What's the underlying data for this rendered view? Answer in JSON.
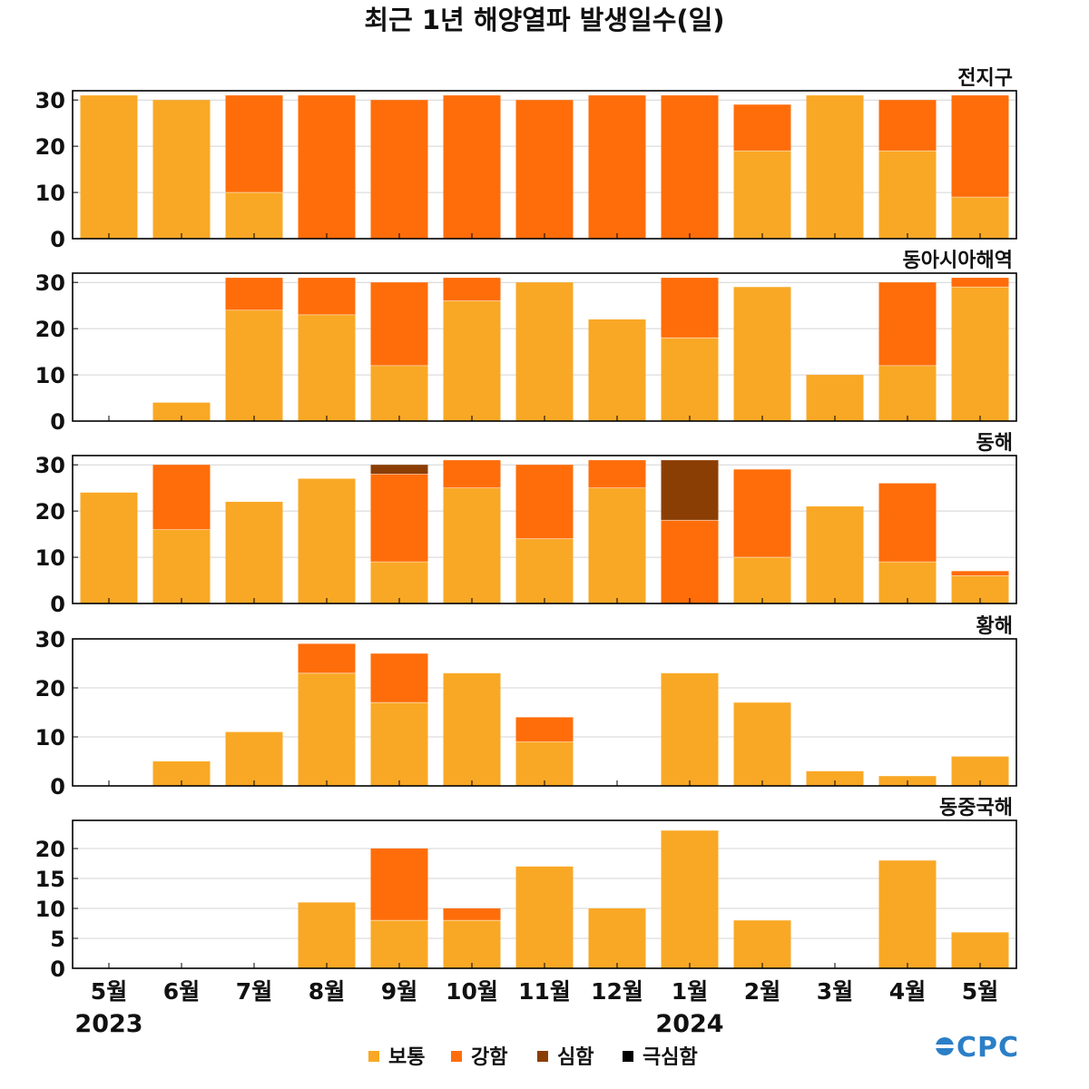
{
  "title": "최근 1년 해양열파 발생일수(일)",
  "colors": {
    "보통": "#f9a825",
    "강함": "#ff6d0a",
    "심함": "#8b3e04",
    "극심함": "#000000",
    "grid": "#d4d4d4",
    "frame": "#000000"
  },
  "logo_text": "CPC",
  "chart_data": {
    "type": "bar",
    "stacked": true,
    "categories": [
      "5월",
      "6월",
      "7월",
      "8월",
      "9월",
      "10월",
      "11월",
      "12월",
      "1월",
      "2월",
      "3월",
      "4월",
      "5월"
    ],
    "year_labels": [
      {
        "index": 0,
        "label": "2023"
      },
      {
        "index": 8,
        "label": "2024"
      }
    ],
    "legend": [
      "보통",
      "강함",
      "심함",
      "극심함"
    ],
    "legend_position": "bottom-center",
    "panels": [
      {
        "title": "전지구",
        "ylim": [
          0,
          32
        ],
        "yticks": [
          0,
          10,
          20,
          30
        ],
        "series": [
          {
            "name": "보통",
            "values": [
              31,
              30,
              10,
              0,
              0,
              0,
              0,
              0,
              0,
              19,
              31,
              19,
              9
            ]
          },
          {
            "name": "강함",
            "values": [
              0,
              0,
              21,
              31,
              30,
              31,
              30,
              31,
              31,
              10,
              0,
              11,
              22
            ]
          },
          {
            "name": "심함",
            "values": [
              0,
              0,
              0,
              0,
              0,
              0,
              0,
              0,
              0,
              0,
              0,
              0,
              0
            ]
          },
          {
            "name": "극심함",
            "values": [
              0,
              0,
              0,
              0,
              0,
              0,
              0,
              0,
              0,
              0,
              0,
              0,
              0
            ]
          }
        ]
      },
      {
        "title": "동아시아해역",
        "ylim": [
          0,
          32
        ],
        "yticks": [
          0,
          10,
          20,
          30
        ],
        "series": [
          {
            "name": "보통",
            "values": [
              0,
              4,
              24,
              23,
              12,
              26,
              30,
              22,
              18,
              29,
              10,
              12,
              29
            ]
          },
          {
            "name": "강함",
            "values": [
              0,
              0,
              7,
              8,
              18,
              5,
              0,
              0,
              13,
              0,
              0,
              18,
              2
            ]
          },
          {
            "name": "심함",
            "values": [
              0,
              0,
              0,
              0,
              0,
              0,
              0,
              0,
              0,
              0,
              0,
              0,
              0
            ]
          },
          {
            "name": "극심함",
            "values": [
              0,
              0,
              0,
              0,
              0,
              0,
              0,
              0,
              0,
              0,
              0,
              0,
              0
            ]
          }
        ]
      },
      {
        "title": "동해",
        "ylim": [
          0,
          32
        ],
        "yticks": [
          0,
          10,
          20,
          30
        ],
        "series": [
          {
            "name": "보통",
            "values": [
              24,
              16,
              22,
              27,
              9,
              25,
              14,
              25,
              0,
              10,
              21,
              9,
              6
            ]
          },
          {
            "name": "강함",
            "values": [
              0,
              14,
              0,
              0,
              19,
              6,
              16,
              6,
              18,
              19,
              0,
              17,
              1
            ]
          },
          {
            "name": "심함",
            "values": [
              0,
              0,
              0,
              0,
              2,
              0,
              0,
              0,
              13,
              0,
              0,
              0,
              0
            ]
          },
          {
            "name": "극심함",
            "values": [
              0,
              0,
              0,
              0,
              0,
              0,
              0,
              0,
              0,
              0,
              0,
              0,
              0
            ]
          }
        ]
      },
      {
        "title": "황해",
        "ylim": [
          0,
          30
        ],
        "yticks": [
          0,
          10,
          20,
          30
        ],
        "series": [
          {
            "name": "보통",
            "values": [
              0,
              5,
              11,
              23,
              17,
              23,
              9,
              0,
              23,
              17,
              3,
              2,
              6
            ]
          },
          {
            "name": "강함",
            "values": [
              0,
              0,
              0,
              6,
              10,
              0,
              5,
              0,
              0,
              0,
              0,
              0,
              0
            ]
          },
          {
            "name": "심함",
            "values": [
              0,
              0,
              0,
              0,
              0,
              0,
              0,
              0,
              0,
              0,
              0,
              0,
              0
            ]
          },
          {
            "name": "극심함",
            "values": [
              0,
              0,
              0,
              0,
              0,
              0,
              0,
              0,
              0,
              0,
              0,
              0,
              0
            ]
          }
        ]
      },
      {
        "title": "동중국해",
        "ylim": [
          0,
          24.7
        ],
        "yticks": [
          0,
          5,
          10,
          15,
          20
        ],
        "series": [
          {
            "name": "보통",
            "values": [
              0,
              0,
              0,
              11,
              8,
              8,
              17,
              10,
              23,
              8,
              0,
              18,
              6
            ]
          },
          {
            "name": "강함",
            "values": [
              0,
              0,
              0,
              0,
              12,
              2,
              0,
              0,
              0,
              0,
              0,
              0,
              0
            ]
          },
          {
            "name": "심함",
            "values": [
              0,
              0,
              0,
              0,
              0,
              0,
              0,
              0,
              0,
              0,
              0,
              0,
              0
            ]
          },
          {
            "name": "극심함",
            "values": [
              0,
              0,
              0,
              0,
              0,
              0,
              0,
              0,
              0,
              0,
              0,
              0,
              0
            ]
          }
        ]
      }
    ]
  }
}
